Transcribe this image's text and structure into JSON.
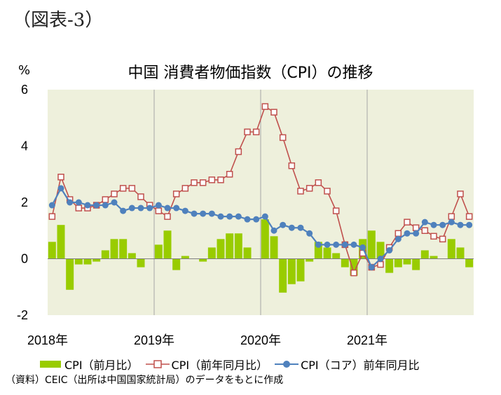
{
  "figure_label": "（図表-3）",
  "chart_data": {
    "type": "bar+line",
    "title": "中国  消費者物価指数（CPI）の推移",
    "y_unit": "%",
    "ylim": [
      -2,
      6
    ],
    "y_ticks": [
      6,
      4,
      2,
      0,
      -2
    ],
    "x_labels": [
      {
        "label": "2018年",
        "month_index": 0
      },
      {
        "label": "2019年",
        "month_index": 12
      },
      {
        "label": "2020年",
        "month_index": 24
      },
      {
        "label": "2021年",
        "month_index": 36
      }
    ],
    "months": [
      "2018-01",
      "2018-02",
      "2018-03",
      "2018-04",
      "2018-05",
      "2018-06",
      "2018-07",
      "2018-08",
      "2018-09",
      "2018-10",
      "2018-11",
      "2018-12",
      "2019-01",
      "2019-02",
      "2019-03",
      "2019-04",
      "2019-05",
      "2019-06",
      "2019-07",
      "2019-08",
      "2019-09",
      "2019-10",
      "2019-11",
      "2019-12",
      "2020-01",
      "2020-02",
      "2020-03",
      "2020-04",
      "2020-05",
      "2020-06",
      "2020-07",
      "2020-08",
      "2020-09",
      "2020-10",
      "2020-11",
      "2020-12",
      "2021-01",
      "2021-02",
      "2021-03",
      "2021-04",
      "2021-05",
      "2021-06",
      "2021-07",
      "2021-08",
      "2021-09",
      "2021-10",
      "2021-11",
      "2021-12"
    ],
    "series": [
      {
        "name": "CPI（前月比）",
        "type": "bar",
        "color": "#99cc00",
        "values": [
          0.6,
          1.2,
          -1.1,
          -0.2,
          -0.2,
          -0.1,
          0.3,
          0.7,
          0.7,
          0.2,
          -0.3,
          0.0,
          0.5,
          1.0,
          -0.4,
          0.1,
          0.0,
          -0.1,
          0.4,
          0.7,
          0.9,
          0.9,
          0.4,
          0.0,
          1.4,
          0.8,
          -1.2,
          -0.9,
          -0.8,
          -0.1,
          0.6,
          0.4,
          0.2,
          -0.3,
          -0.6,
          0.7,
          1.0,
          0.6,
          -0.5,
          -0.3,
          -0.2,
          -0.4,
          0.3,
          0.1,
          0.0,
          0.7,
          0.4,
          -0.3
        ]
      },
      {
        "name": "CPI（前年同月比）",
        "type": "line",
        "color": "#c0504d",
        "marker": "square-open",
        "values": [
          1.5,
          2.9,
          2.1,
          1.8,
          1.8,
          1.9,
          2.1,
          2.3,
          2.5,
          2.5,
          2.2,
          1.9,
          1.7,
          1.5,
          2.3,
          2.5,
          2.7,
          2.7,
          2.8,
          2.8,
          3.0,
          3.8,
          4.5,
          4.5,
          5.4,
          5.2,
          4.3,
          3.3,
          2.4,
          2.5,
          2.7,
          2.4,
          1.7,
          0.5,
          -0.5,
          0.2,
          -0.3,
          -0.2,
          0.4,
          0.9,
          1.3,
          1.1,
          1.0,
          0.8,
          0.7,
          1.5,
          2.3,
          1.5
        ]
      },
      {
        "name": "CPI（コア）前年同月比",
        "type": "line",
        "color": "#4f81bd",
        "marker": "circle-filled",
        "values": [
          1.9,
          2.5,
          2.0,
          2.0,
          1.9,
          1.9,
          1.9,
          2.0,
          1.7,
          1.8,
          1.8,
          1.8,
          1.9,
          1.8,
          1.8,
          1.7,
          1.6,
          1.6,
          1.6,
          1.5,
          1.5,
          1.5,
          1.4,
          1.4,
          1.5,
          1.0,
          1.2,
          1.1,
          1.1,
          0.9,
          0.5,
          0.5,
          0.5,
          0.5,
          0.5,
          0.4,
          -0.3,
          0.0,
          0.3,
          0.7,
          0.9,
          0.9,
          1.3,
          1.2,
          1.2,
          1.3,
          1.2,
          1.2
        ]
      }
    ],
    "legend": [
      "CPI（前月比）",
      "CPI（前年同月比）",
      "CPI（コア）前年同月比"
    ],
    "background_color": "#eef0dc",
    "grid": "vertical-year-lines"
  },
  "source_note": "（資料）CEIC（出所は中国国家統計局）のデータをもとに作成"
}
